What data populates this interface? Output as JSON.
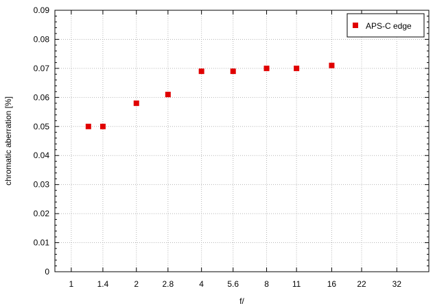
{
  "chart_data": {
    "type": "scatter",
    "title": "",
    "xlabel": "f/",
    "ylabel": "chromatic aberration [%]",
    "x_scale": "log2",
    "xlim": [
      0.84,
      45
    ],
    "ylim": [
      0,
      0.09
    ],
    "x_ticks": [
      {
        "value": 1,
        "label": "1"
      },
      {
        "value": 1.4,
        "label": "1.4"
      },
      {
        "value": 2,
        "label": "2"
      },
      {
        "value": 2.8,
        "label": "2.8"
      },
      {
        "value": 4,
        "label": "4"
      },
      {
        "value": 5.6,
        "label": "5.6"
      },
      {
        "value": 8,
        "label": "8"
      },
      {
        "value": 11,
        "label": "11"
      },
      {
        "value": 16,
        "label": "16"
      },
      {
        "value": 22,
        "label": "22"
      },
      {
        "value": 32,
        "label": "32"
      }
    ],
    "y_ticks": [
      {
        "value": 0,
        "label": "0"
      },
      {
        "value": 0.01,
        "label": "0.01"
      },
      {
        "value": 0.02,
        "label": "0.02"
      },
      {
        "value": 0.03,
        "label": "0.03"
      },
      {
        "value": 0.04,
        "label": "0.04"
      },
      {
        "value": 0.05,
        "label": "0.05"
      },
      {
        "value": 0.06,
        "label": "0.06"
      },
      {
        "value": 0.07,
        "label": "0.07"
      },
      {
        "value": 0.08,
        "label": "0.08"
      },
      {
        "value": 0.09,
        "label": "0.09"
      }
    ],
    "grid": true,
    "legend_position": "top-right",
    "series": [
      {
        "name": "APS-C edge",
        "color": "#e00000",
        "marker": "square",
        "points": [
          {
            "x": 1.2,
            "y": 0.05
          },
          {
            "x": 1.4,
            "y": 0.05
          },
          {
            "x": 2,
            "y": 0.058
          },
          {
            "x": 2.8,
            "y": 0.061
          },
          {
            "x": 4,
            "y": 0.069
          },
          {
            "x": 5.6,
            "y": 0.069
          },
          {
            "x": 8,
            "y": 0.07
          },
          {
            "x": 11,
            "y": 0.07
          },
          {
            "x": 16,
            "y": 0.071
          }
        ]
      }
    ]
  }
}
